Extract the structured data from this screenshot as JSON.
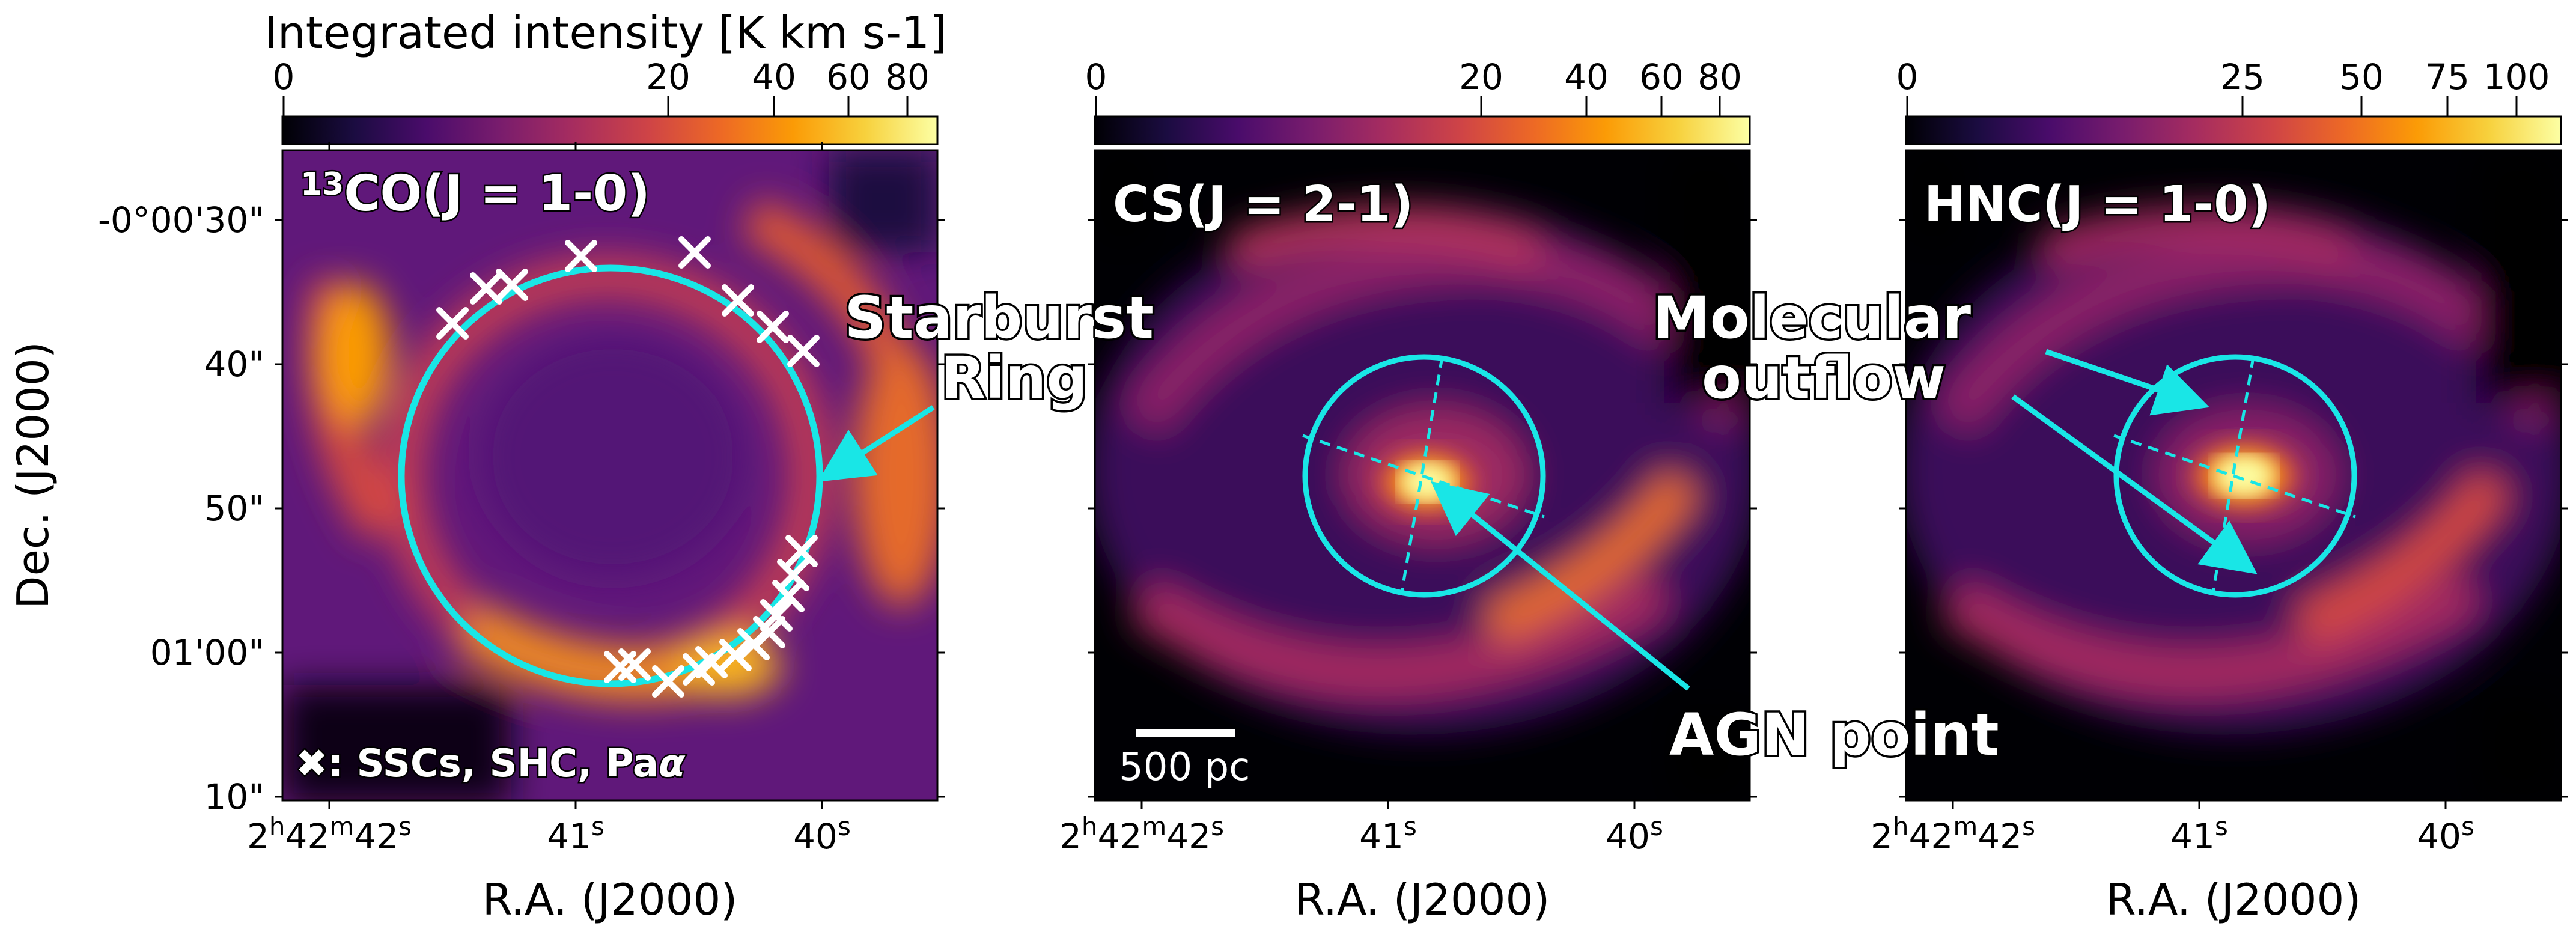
{
  "colorbar": {
    "title": "Integrated intensity [K km s-1]",
    "ticks_panel1": [
      "0",
      "20",
      "40",
      "60",
      "80"
    ],
    "ticks_panel2": [
      "0",
      "20",
      "40",
      "60",
      "80"
    ],
    "ticks_panel3": [
      "0",
      "25",
      "50",
      "75",
      "100"
    ]
  },
  "panels": [
    {
      "label_sup": "13",
      "label_main": "CO(J = 1-0)"
    },
    {
      "label": "CS(J = 2-1)"
    },
    {
      "label": "HNC(J = 1-0)"
    }
  ],
  "axes": {
    "xlabel": "R.A. (J2000)",
    "ylabel": "Dec. (J2000)",
    "xtick_first": {
      "h": "2",
      "h_unit": "h",
      "m": "42",
      "m_unit": "m",
      "s": "42",
      "s_unit": "s"
    },
    "xtick_41": {
      "value": "41",
      "unit": "s"
    },
    "xtick_40": {
      "value": "40",
      "unit": "s"
    },
    "yticks": [
      "-0°00'30\"",
      "40\"",
      "50\"",
      "01'00\"",
      "10\""
    ]
  },
  "annotations": {
    "starburst_line1": "Starburst",
    "starburst_line2": "Ring",
    "agn": "AGN point",
    "outflow_line1": "Molecular",
    "outflow_line2": "outflow",
    "scalebar": "500 pc",
    "legend_marker": "✖",
    "legend_text_prefix": ": SSCs, SHC, Pa",
    "legend_text_greek": "α"
  },
  "colors": {
    "ring": "#19e6e6",
    "arrow": "#19e6e6",
    "marker": "#ffffff",
    "cmap": [
      "#000004",
      "#1b0c41",
      "#4a0c6b",
      "#781c6d",
      "#a52c60",
      "#cf4446",
      "#ed6925",
      "#fb9b06",
      "#f7d13d",
      "#fcffa4"
    ]
  },
  "ssc_marker_count": 20
}
